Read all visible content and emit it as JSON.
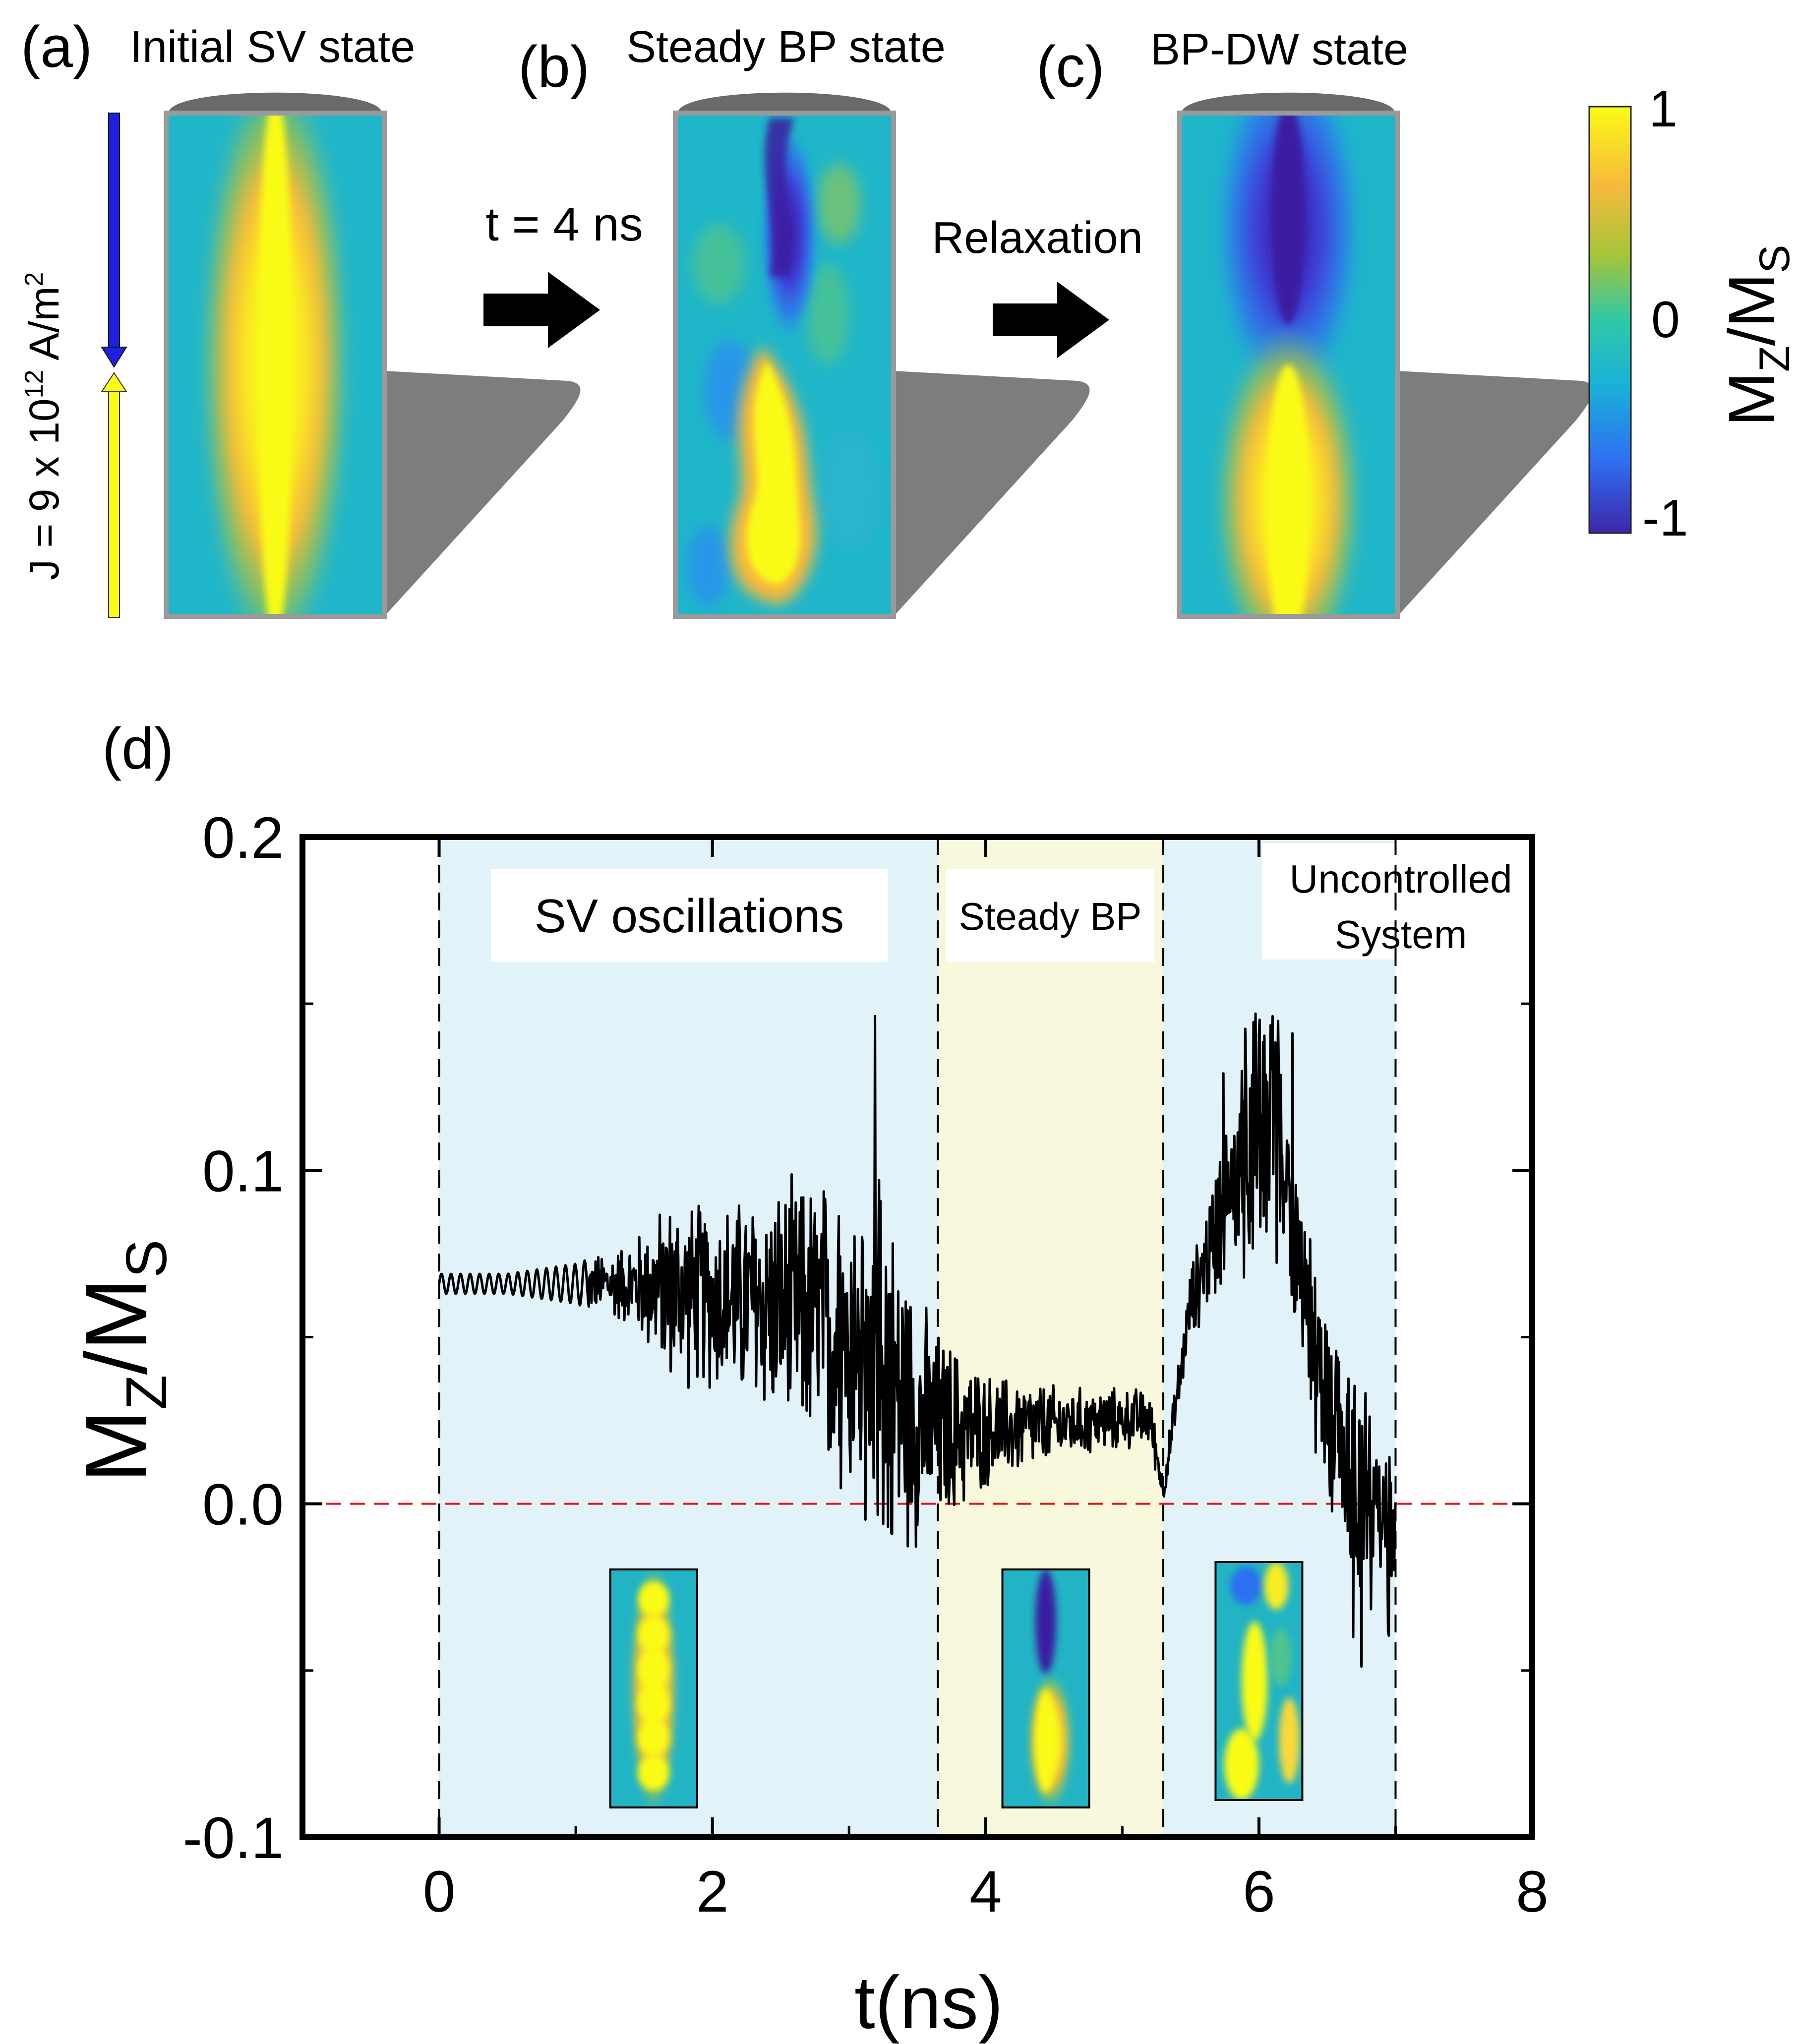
{
  "panels_top": [
    {
      "label": "(a)",
      "title": "Initial SV state",
      "kind": "sv"
    },
    {
      "label": "(b)",
      "title": "Steady BP state",
      "kind": "bp"
    },
    {
      "label": "(c)",
      "title": "BP-DW state",
      "kind": "dw"
    }
  ],
  "transitions": {
    "first": "t = 4 ns",
    "second": "Relaxation"
  },
  "current_label": {
    "prefix": "J = 9 x 10",
    "exponent": "12",
    "unit": " A/m",
    "unit_exp": "2"
  },
  "colorbar": {
    "ticks": [
      "1",
      "0",
      "-1"
    ],
    "label_main": "M",
    "label_sub1": "Z",
    "label_mid": "/M",
    "label_sub2": "S",
    "colors": [
      "#3e26a8",
      "#2f6ff3",
      "#1ab2d8",
      "#2ec9a6",
      "#a6c439",
      "#f8ba3a",
      "#f9fb15"
    ]
  },
  "panel_d_label": "(d)",
  "chart_data": {
    "type": "line",
    "xlabel": "t(ns)",
    "ylabel_main": "M",
    "ylabel_sub1": "Z",
    "ylabel_mid": "/M",
    "ylabel_sub2": "S",
    "xlim": [
      -1,
      8
    ],
    "ylim": [
      -0.1,
      0.2
    ],
    "xticks": [
      0,
      2,
      4,
      6,
      8
    ],
    "xtick_labels": [
      "0",
      "2",
      "4",
      "6",
      "8"
    ],
    "yticks": [
      0.2,
      0.1,
      0.0,
      -0.1
    ],
    "ytick_labels": [
      "0.2",
      "0.1",
      "0.0",
      "-0.1"
    ],
    "reference_line_y": 0.0,
    "regions": [
      {
        "name": "SV oscillations",
        "x0": 0,
        "x1": 3.65,
        "color": "#e1f3f9"
      },
      {
        "name": "Steady BP",
        "x0": 3.65,
        "x1": 5.3,
        "color": "#f8f8dc"
      },
      {
        "name_line1": "Uncontrolled",
        "name_line2": "System",
        "x0": 5.3,
        "x1": 7.0,
        "color": "#e1f3f9"
      }
    ],
    "envelope": [
      {
        "t": 0.0,
        "center": 0.066,
        "amp": 0.003
      },
      {
        "t": 0.5,
        "center": 0.066,
        "amp": 0.003
      },
      {
        "t": 1.0,
        "center": 0.066,
        "amp": 0.006
      },
      {
        "t": 1.4,
        "center": 0.066,
        "amp": 0.012
      },
      {
        "t": 1.7,
        "center": 0.064,
        "amp": 0.026
      },
      {
        "t": 2.0,
        "center": 0.062,
        "amp": 0.026
      },
      {
        "t": 2.4,
        "center": 0.06,
        "amp": 0.032
      },
      {
        "t": 2.8,
        "center": 0.055,
        "amp": 0.04
      },
      {
        "t": 3.2,
        "center": 0.04,
        "amp": 0.055
      },
      {
        "t": 3.6,
        "center": 0.022,
        "amp": 0.03
      },
      {
        "t": 4.0,
        "center": 0.022,
        "amp": 0.016
      },
      {
        "t": 4.6,
        "center": 0.024,
        "amp": 0.01
      },
      {
        "t": 5.2,
        "center": 0.026,
        "amp": 0.008
      },
      {
        "t": 5.3,
        "center": 0.004,
        "amp": 0.004
      },
      {
        "t": 5.5,
        "center": 0.06,
        "amp": 0.01
      },
      {
        "t": 5.8,
        "center": 0.095,
        "amp": 0.025
      },
      {
        "t": 6.1,
        "center": 0.115,
        "amp": 0.04
      },
      {
        "t": 6.3,
        "center": 0.07,
        "amp": 0.02
      },
      {
        "t": 6.5,
        "center": 0.03,
        "amp": 0.025
      },
      {
        "t": 6.8,
        "center": 0.0,
        "amp": 0.03
      },
      {
        "t": 7.0,
        "center": 0.0,
        "amp": 0.01
      }
    ],
    "insets": [
      {
        "x_center": 1.57,
        "kind": "sv"
      },
      {
        "x_center": 4.44,
        "kind": "bp"
      },
      {
        "x_center": 6.0,
        "kind": "uc"
      }
    ]
  }
}
